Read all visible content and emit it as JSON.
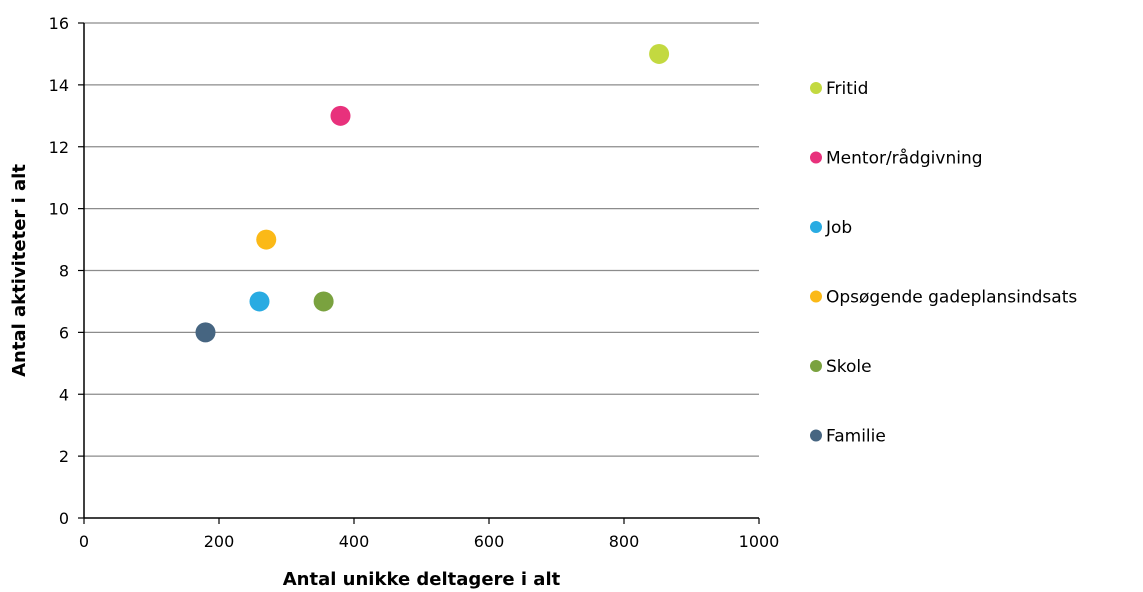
{
  "chart_data": {
    "type": "scatter",
    "title": "",
    "xlabel": "Antal unikke deltagere i alt",
    "ylabel": "Antal aktiviteter i alt",
    "xlim": [
      0,
      1000
    ],
    "ylim": [
      0,
      16
    ],
    "x_ticks": [
      0,
      200,
      400,
      600,
      800,
      1000
    ],
    "y_ticks": [
      0,
      2,
      4,
      6,
      8,
      10,
      12,
      14,
      16
    ],
    "grid": "horizontal",
    "legend_position": "right",
    "series": [
      {
        "name": "Fritid",
        "color": "#c3d940",
        "x": [
          852
        ],
        "y": [
          15
        ]
      },
      {
        "name": "Mentor/rådgivning",
        "color": "#e8317c",
        "x": [
          380
        ],
        "y": [
          13
        ]
      },
      {
        "name": "Job",
        "color": "#29abe2",
        "x": [
          260
        ],
        "y": [
          7
        ]
      },
      {
        "name": "Opsøgende gadeplansindsats",
        "color": "#fbb917",
        "x": [
          270
        ],
        "y": [
          9
        ]
      },
      {
        "name": "Skole",
        "color": "#7aa23f",
        "x": [
          355
        ],
        "y": [
          7
        ]
      },
      {
        "name": "Familie",
        "color": "#466581",
        "x": [
          180
        ],
        "y": [
          6
        ]
      }
    ]
  }
}
